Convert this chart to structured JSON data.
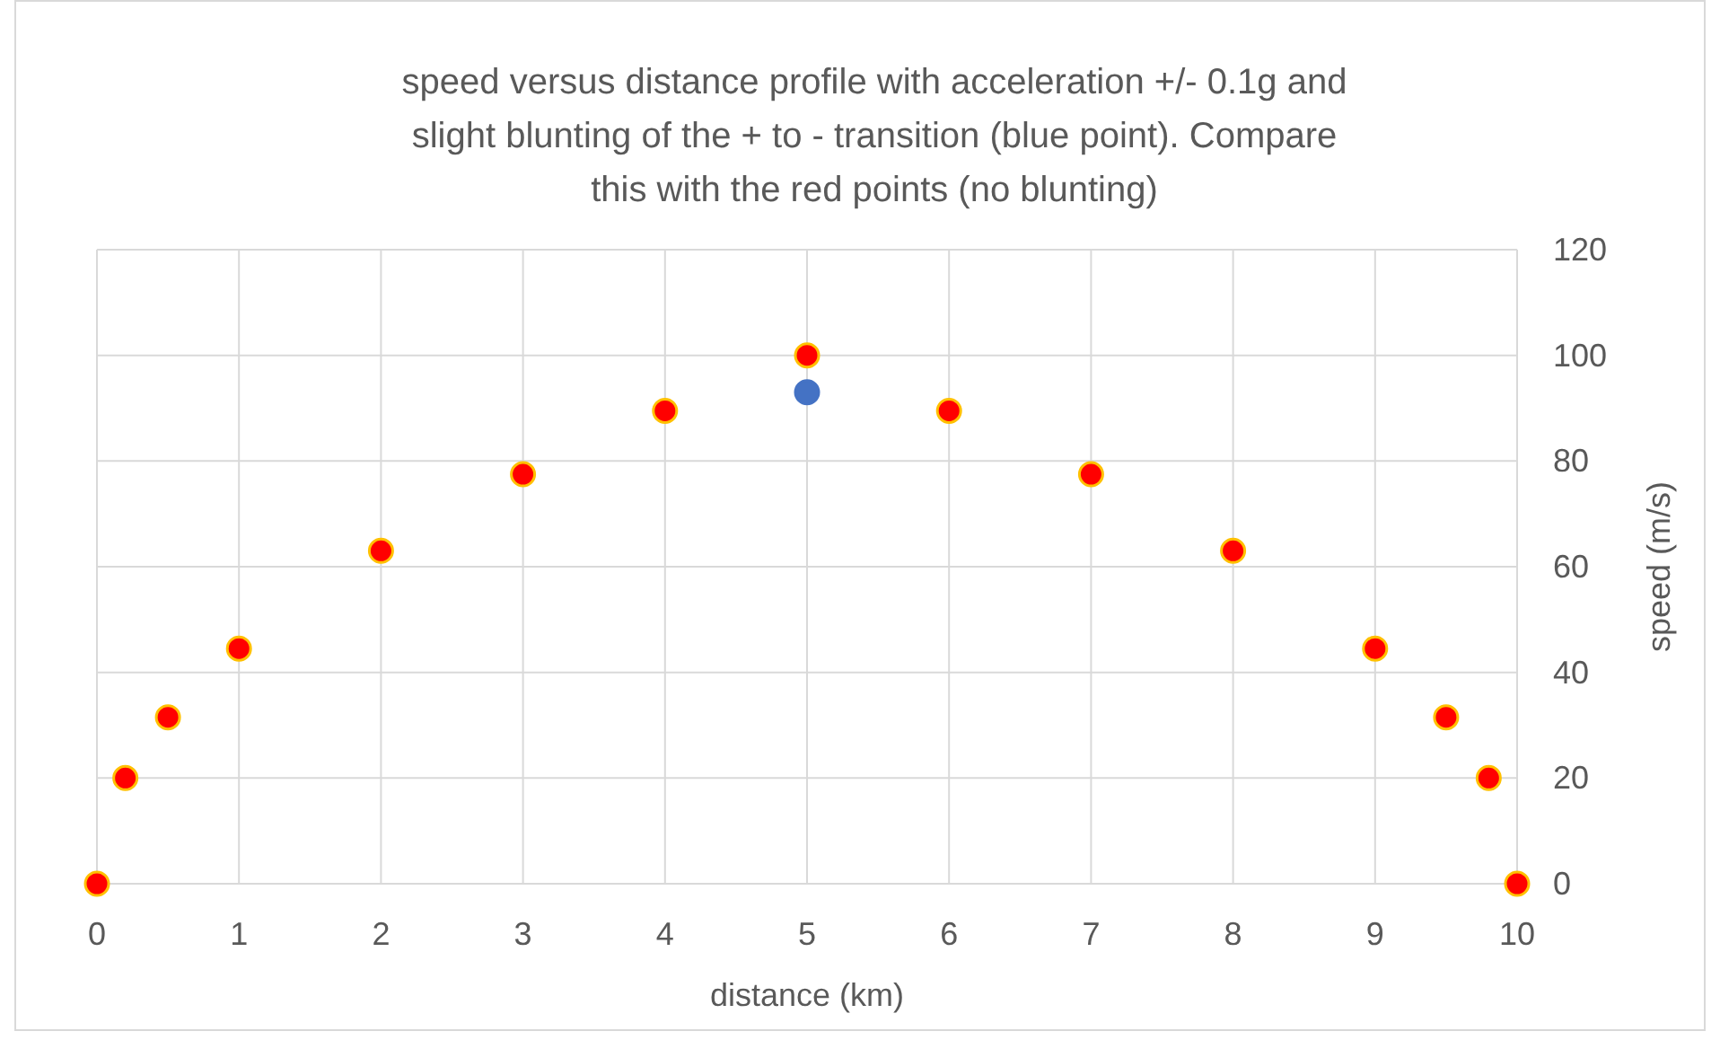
{
  "chart_data": {
    "type": "scatter",
    "title": "speed versus distance profile with acceleration +/- 0.1g and slight blunting of the + to - transition (blue point). Compare this with the red points (no blunting)",
    "xlabel": "distance (km)",
    "ylabel": "speed (m/s)",
    "series": [
      {
        "color": "#ff0000",
        "x": [
          0,
          0.2,
          0.5,
          1,
          2,
          3,
          4,
          5,
          6,
          7,
          8,
          9,
          9.5,
          9.8,
          10
        ],
        "values": [
          0,
          20,
          31.5,
          44.5,
          63,
          77.5,
          89.5,
          100,
          89.5,
          77.5,
          63,
          44.5,
          31.5,
          20,
          0
        ]
      },
      {
        "color": "#4472c4",
        "x": [
          5
        ],
        "values": [
          93
        ]
      }
    ],
    "xlim": [
      0,
      10
    ],
    "xticks": [
      0,
      1,
      2,
      3,
      4,
      5,
      6,
      7,
      8,
      9,
      10
    ],
    "ylim": [
      0,
      120
    ],
    "yticks": [
      0,
      20,
      40,
      60,
      80,
      100,
      120
    ],
    "grid": true,
    "marker": "circle"
  }
}
